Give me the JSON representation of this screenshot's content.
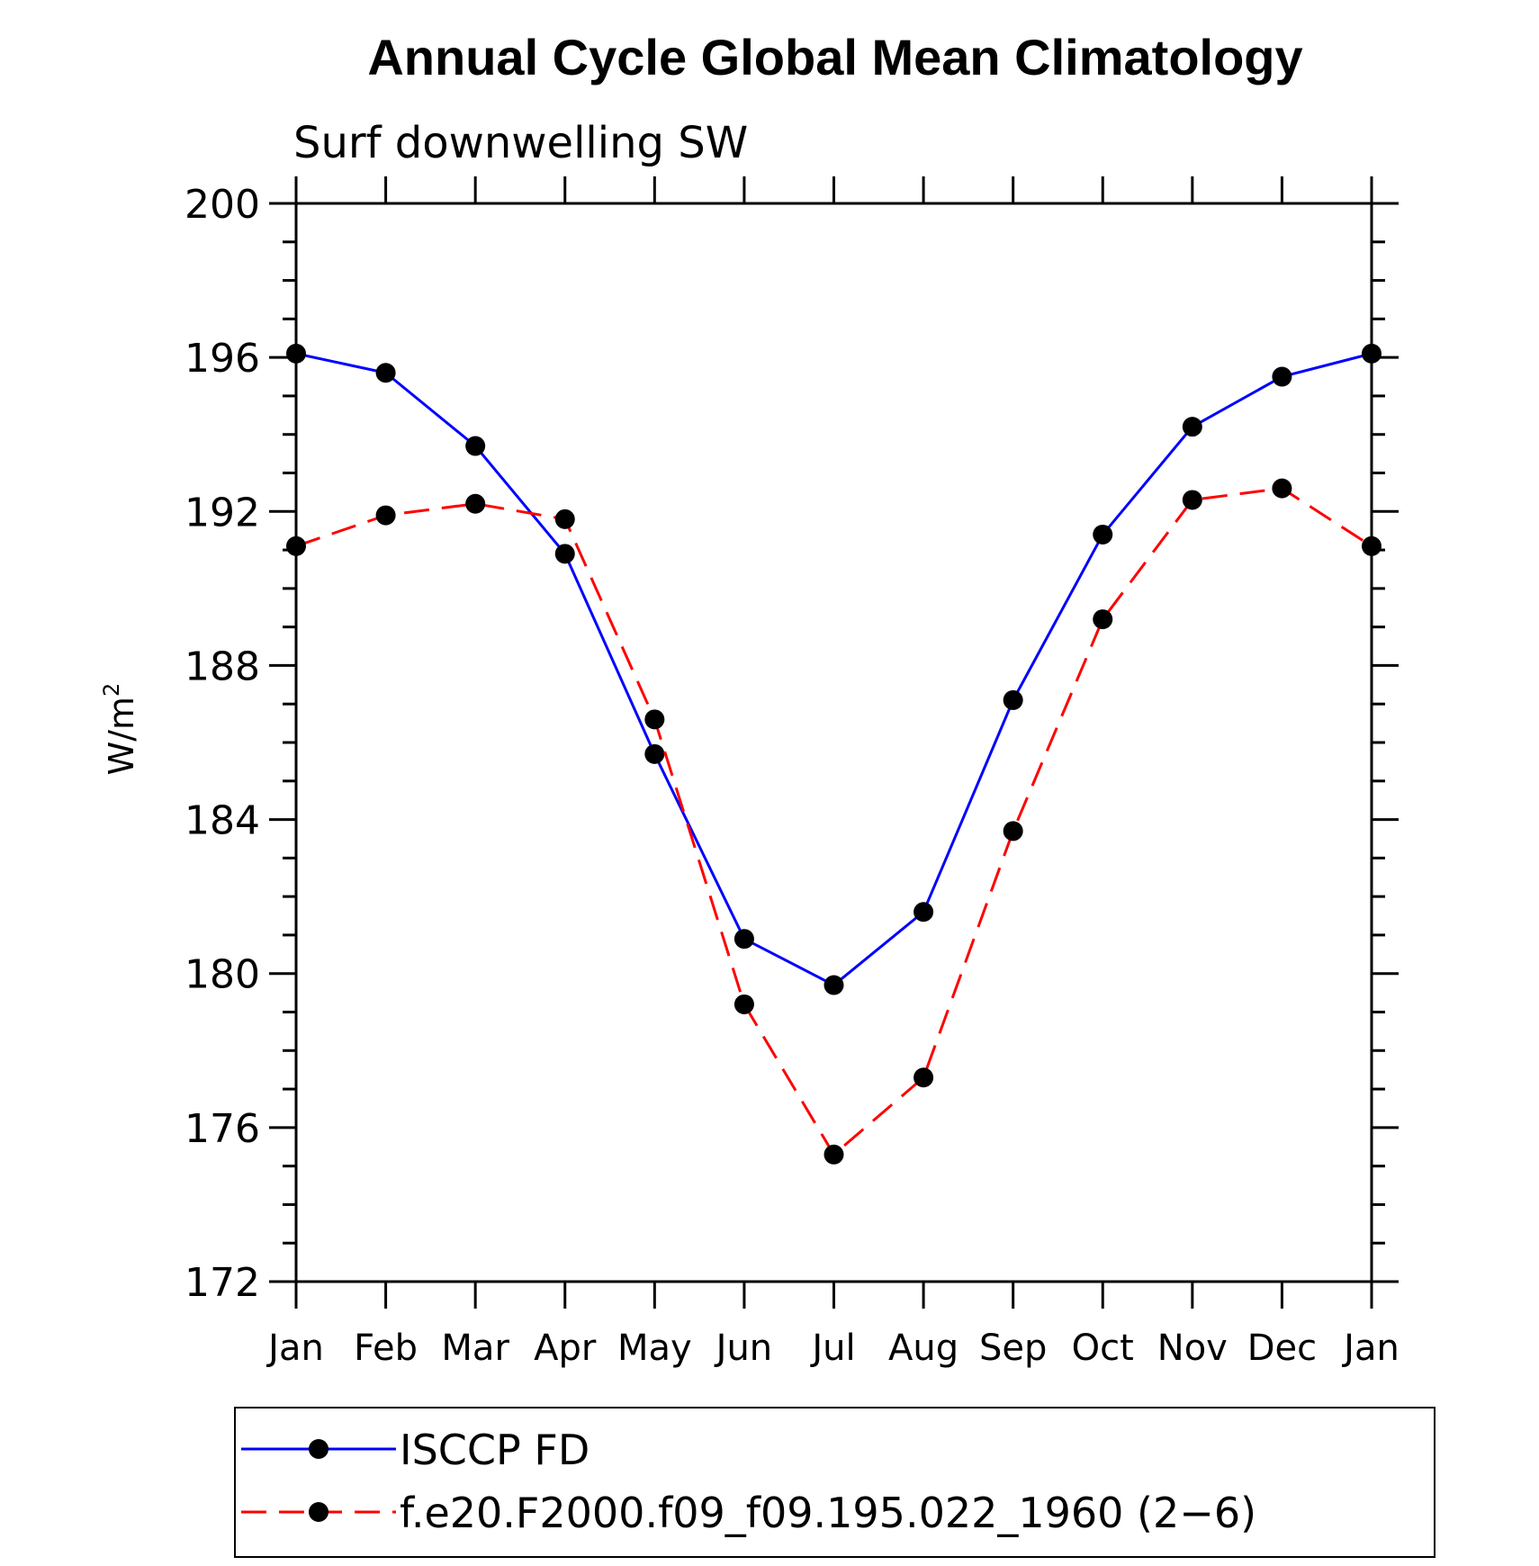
{
  "chart_data": {
    "type": "line",
    "title": "Annual Cycle Global Mean Climatology",
    "subtitle": "Surf downwelling SW",
    "ylabel": "W/m",
    "ylabel_superscript": "2",
    "xlabel": "",
    "categories": [
      "Jan",
      "Feb",
      "Mar",
      "Apr",
      "May",
      "Jun",
      "Jul",
      "Aug",
      "Sep",
      "Oct",
      "Nov",
      "Dec",
      "Jan"
    ],
    "ylim": [
      172,
      200
    ],
    "yticks": [
      "172",
      "176",
      "180",
      "184",
      "188",
      "192",
      "196",
      "200"
    ],
    "grid": false,
    "legend_position": "bottom",
    "series": [
      {
        "name": "ISCCP FD",
        "color": "#0000ff",
        "line_style": "solid",
        "marker": "filled-circle",
        "values": [
          196.1,
          195.6,
          193.7,
          190.9,
          185.7,
          180.9,
          179.7,
          181.6,
          187.1,
          191.4,
          194.2,
          195.5,
          196.1
        ]
      },
      {
        "name": "f.e20.F2000.f09_f09.195.022_1960 (2−6)",
        "color": "#ff0000",
        "line_style": "dashed",
        "marker": "filled-circle",
        "values": [
          191.1,
          191.9,
          192.2,
          191.8,
          186.6,
          179.2,
          175.3,
          177.3,
          183.7,
          189.2,
          192.3,
          192.6,
          191.1
        ]
      }
    ]
  }
}
